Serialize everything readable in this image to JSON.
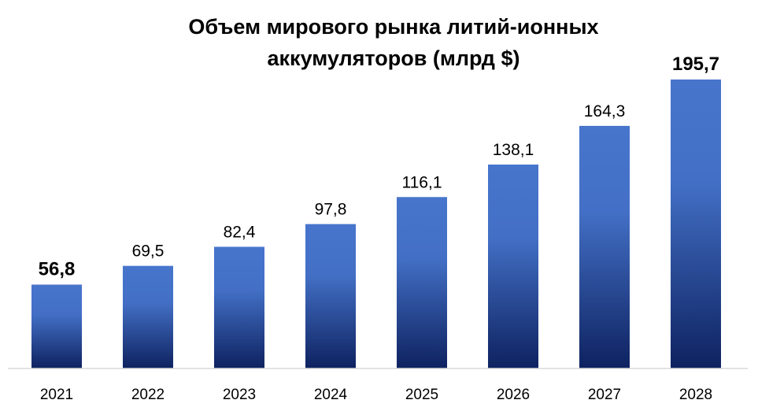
{
  "chart_data": {
    "type": "bar",
    "title_lines": [
      "Объем мирового рынка литий-ионных",
      "аккумуляторов  (млрд $)"
    ],
    "categories": [
      "2021",
      "2022",
      "2023",
      "2024",
      "2025",
      "2026",
      "2027",
      "2028"
    ],
    "values": [
      56.8,
      69.5,
      82.4,
      97.8,
      116.1,
      138.1,
      164.3,
      195.7
    ],
    "value_labels": [
      "56,8",
      "69,5",
      "82,4",
      "97,8",
      "116,1",
      "138,1",
      "164,3",
      "195,7"
    ],
    "bold_labels": [
      true,
      false,
      false,
      false,
      false,
      false,
      false,
      true
    ],
    "ylim": [
      0,
      200
    ],
    "grid": false,
    "legend": "none",
    "colors": {
      "bar_top": "#4775CC",
      "bar_bottom": "#0E2260",
      "axis": "#D9D9D9",
      "text": "#000000"
    }
  }
}
